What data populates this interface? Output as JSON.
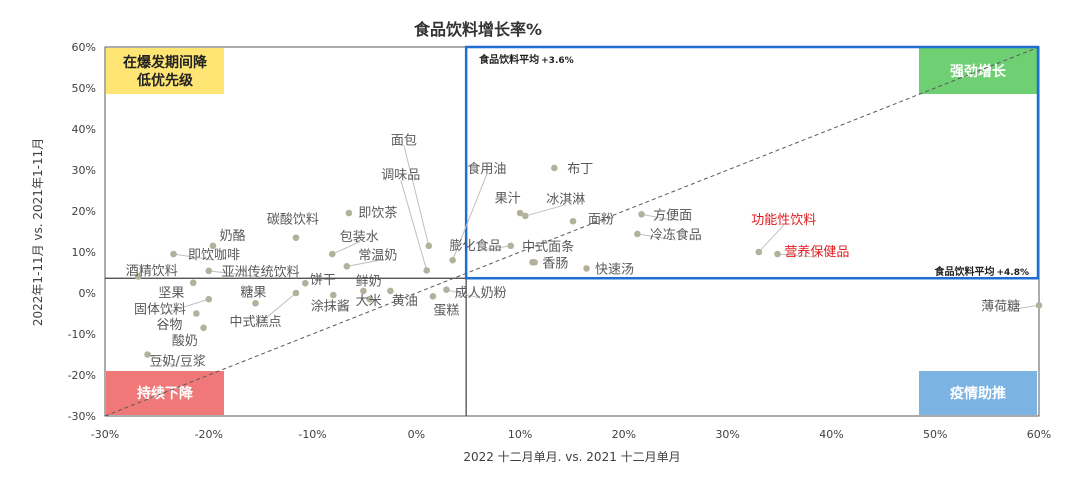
{
  "chart_data": {
    "type": "scatter",
    "title": "食品饮料增长率%",
    "xlabel": "2022 十二月单月. vs. 2021 十二月单月",
    "ylabel": "2022年1-11月 vs. 2021年1-11月",
    "xlim": [
      -30,
      60
    ],
    "ylim": [
      -30,
      60
    ],
    "x_ticks": [
      "-30%",
      "-20%",
      "-10%",
      "0%",
      "10%",
      "20%",
      "30%",
      "40%",
      "50%",
      "60%"
    ],
    "y_ticks": [
      "-30%",
      "-20%",
      "-10%",
      "0%",
      "10%",
      "20%",
      "30%",
      "40%",
      "50%",
      "60%"
    ],
    "reference_lines": {
      "vertical_x": 4.8,
      "horizontal_y": 3.6,
      "horizontal_label": "食品饮料平均",
      "horizontal_value_label": "+3.6%",
      "vertical_label": "食品饮料平均",
      "vertical_value_label": "+4.8%"
    },
    "quadrants": [
      {
        "name": "top-left",
        "text": "在爆发期间降低优先级",
        "lines": [
          "在爆发期间降",
          "低优先级"
        ],
        "color": "#FFE573",
        "text_color": "#222222"
      },
      {
        "name": "top-right",
        "text": "强劲增长",
        "lines": [
          "强劲增长"
        ],
        "color": "#6FCF73",
        "text_color": "#ffffff"
      },
      {
        "name": "bottom-left",
        "text": "持续下降",
        "lines": [
          "持续下降"
        ],
        "color": "#F07878",
        "text_color": "#ffffff"
      },
      {
        "name": "bottom-right",
        "text": "疫情助推",
        "lines": [
          "疫情助推"
        ],
        "color": "#7BB3E3",
        "text_color": "#ffffff"
      }
    ],
    "highlight_color": "#E31A1C",
    "point_color": "#B3B09B",
    "label_color": "#595959",
    "points": [
      {
        "label": "面包",
        "x": 1.2,
        "y": 11.5,
        "lx": -1.2,
        "ly": 37.5
      },
      {
        "label": "调味品",
        "x": 1.0,
        "y": 5.5,
        "lx": -1.5,
        "ly": 29.0
      },
      {
        "label": "食用油",
        "x": 3.5,
        "y": 8.0,
        "lx": 6.8,
        "ly": 30.5
      },
      {
        "label": "布丁",
        "x": 13.3,
        "y": 30.5,
        "lx": 15.8,
        "ly": 30.5
      },
      {
        "label": "果汁",
        "x": 10.0,
        "y": 19.5,
        "lx": 8.8,
        "ly": 23.3
      },
      {
        "label": "冰淇淋",
        "x": 10.5,
        "y": 18.8,
        "lx": 14.4,
        "ly": 23.0
      },
      {
        "label": "面粉",
        "x": 15.1,
        "y": 17.5,
        "lx": 17.8,
        "ly": 18.2
      },
      {
        "label": "方便面",
        "x": 21.7,
        "y": 19.2,
        "lx": 24.7,
        "ly": 19.2
      },
      {
        "label": "冷冻食品",
        "x": 21.3,
        "y": 14.4,
        "lx": 25.0,
        "ly": 14.4
      },
      {
        "label": "膨化食品",
        "x": 9.1,
        "y": 11.5,
        "lx": 5.7,
        "ly": 11.7
      },
      {
        "label": "中式面条",
        "x": 11.2,
        "y": 7.5,
        "lx": 12.7,
        "ly": 11.5
      },
      {
        "label": "香肠",
        "x": 11.4,
        "y": 7.5,
        "lx": 13.4,
        "ly": 7.5
      },
      {
        "label": "快速汤",
        "x": 16.4,
        "y": 6.0,
        "lx": 19.1,
        "ly": 6.0
      },
      {
        "label": "功能性饮料",
        "x": 33.0,
        "y": 10.0,
        "lx": 35.4,
        "ly": 18.0,
        "highlight": true
      },
      {
        "label": "营养保健品",
        "x": 34.8,
        "y": 9.5,
        "lx": 38.6,
        "ly": 10.2,
        "highlight": true
      },
      {
        "label": "薄荷糖",
        "x": 60.0,
        "y": -3.0,
        "lx": 56.3,
        "ly": -3.0
      },
      {
        "label": "奶酪",
        "x": -19.6,
        "y": 11.5,
        "lx": -17.7,
        "ly": 14.1
      },
      {
        "label": "即饮咖啡",
        "x": -23.4,
        "y": 9.5,
        "lx": -19.5,
        "ly": 9.5
      },
      {
        "label": "碳酸饮料",
        "x": -11.6,
        "y": 13.5,
        "lx": -11.9,
        "ly": 18.2
      },
      {
        "label": "即饮茶",
        "x": -6.5,
        "y": 19.5,
        "lx": -3.7,
        "ly": 19.7
      },
      {
        "label": "包装水",
        "x": -8.1,
        "y": 9.5,
        "lx": -5.5,
        "ly": 13.9
      },
      {
        "label": "常温奶",
        "x": -6.7,
        "y": 6.5,
        "lx": -3.7,
        "ly": 9.4
      },
      {
        "label": "酒精饮料",
        "x": -26.8,
        "y": 4.0,
        "lx": -25.5,
        "ly": 5.6
      },
      {
        "label": "亚洲传统饮料",
        "x": -20.0,
        "y": 5.4,
        "lx": -15.0,
        "ly": 5.4
      },
      {
        "label": "饼干",
        "x": -10.7,
        "y": 2.4,
        "lx": -9.0,
        "ly": 3.4
      },
      {
        "label": "鲜奶",
        "x": -5.1,
        "y": 0.5,
        "lx": -4.6,
        "ly": 3.0
      },
      {
        "label": "坚果",
        "x": -21.5,
        "y": 2.5,
        "lx": -23.6,
        "ly": 0.2
      },
      {
        "label": "糖果",
        "x": -15.5,
        "y": -2.5,
        "lx": -15.7,
        "ly": 0.4
      },
      {
        "label": "固体饮料",
        "x": -20.0,
        "y": -1.5,
        "lx": -24.7,
        "ly": -3.8
      },
      {
        "label": "谷物",
        "x": -21.2,
        "y": -5.0,
        "lx": -23.8,
        "ly": -7.5
      },
      {
        "label": "中式糕点",
        "x": -11.6,
        "y": 0.0,
        "lx": -15.5,
        "ly": -6.8
      },
      {
        "label": "涂抹酱",
        "x": -8.0,
        "y": -0.5,
        "lx": -8.3,
        "ly": -3.0
      },
      {
        "label": "大米",
        "x": -4.5,
        "y": -1.5,
        "lx": -4.6,
        "ly": -1.7
      },
      {
        "label": "黄油",
        "x": -2.5,
        "y": 0.5,
        "lx": -1.1,
        "ly": -1.7
      },
      {
        "label": "成人奶粉",
        "x": 2.9,
        "y": 0.8,
        "lx": 6.2,
        "ly": 0.2
      },
      {
        "label": "蛋糕",
        "x": 1.6,
        "y": -0.8,
        "lx": 2.9,
        "ly": -4.0
      },
      {
        "label": "酸奶",
        "x": -20.5,
        "y": -8.5,
        "lx": -22.3,
        "ly": -11.5
      },
      {
        "label": "豆奶/豆浆",
        "x": -25.9,
        "y": -15.0,
        "lx": -23.0,
        "ly": -16.5
      }
    ]
  }
}
